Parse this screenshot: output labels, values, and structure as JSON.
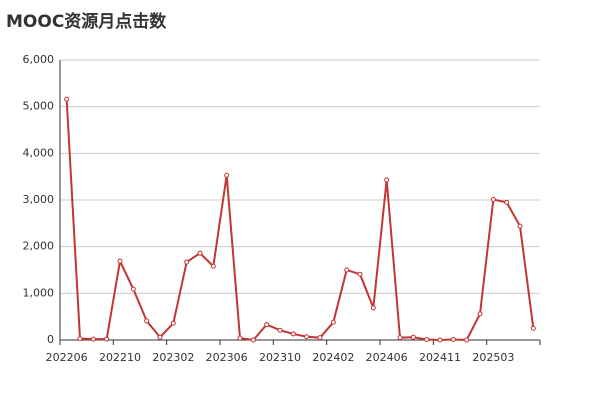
{
  "chart_data": {
    "type": "line",
    "title": "MOOC资源月点击数",
    "color": "#c23531",
    "categories": [
      "202206",
      null,
      null,
      null,
      "202210",
      null,
      null,
      null,
      "202302",
      null,
      null,
      null,
      "202306",
      null,
      null,
      null,
      "202310",
      null,
      null,
      null,
      "202402",
      null,
      null,
      null,
      "202406",
      null,
      null,
      null,
      "202411",
      null,
      null,
      null,
      "202503",
      null,
      null,
      null
    ],
    "values": [
      5160,
      30,
      20,
      20,
      1690,
      1090,
      410,
      60,
      360,
      1670,
      1860,
      1580,
      3530,
      40,
      0,
      330,
      210,
      130,
      70,
      50,
      380,
      1500,
      1410,
      690,
      3430,
      50,
      60,
      10,
      0,
      10,
      0,
      560,
      3010,
      2950,
      2440,
      250
    ],
    "ylim": [
      0,
      6000
    ],
    "yticks": [
      0,
      {
        "value": 1000,
        "label": "1,000"
      },
      {
        "value": 2000,
        "label": "2,000"
      },
      {
        "value": 3000,
        "label": "3,000"
      },
      {
        "value": 4000,
        "label": "4,000"
      },
      {
        "value": 5000,
        "label": "5,000"
      },
      {
        "value": 6000,
        "label": "6,000"
      }
    ],
    "grid": true
  }
}
